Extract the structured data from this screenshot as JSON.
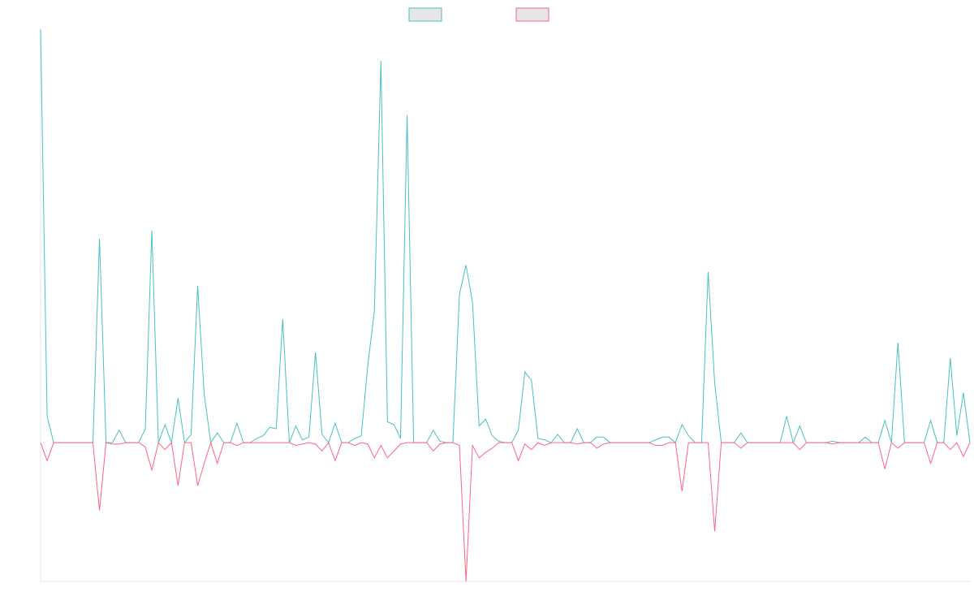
{
  "chart_data": {
    "type": "line",
    "categories": [
      null,
      null,
      null,
      null,
      null,
      null,
      null,
      null,
      null,
      null,
      null,
      null,
      null,
      null,
      null,
      null,
      null,
      null,
      null,
      null,
      null,
      null,
      null,
      null,
      null,
      null,
      null,
      null,
      null,
      null,
      null,
      null,
      null,
      null,
      null,
      null,
      null,
      null,
      null,
      null,
      null,
      null,
      null,
      null,
      null,
      null,
      null,
      null,
      null,
      null,
      null,
      null,
      null,
      null,
      null,
      null,
      null,
      null,
      null,
      null,
      null,
      null,
      null,
      null,
      null,
      null,
      null,
      null,
      null,
      null,
      null,
      null,
      null,
      null,
      null,
      null,
      null,
      null,
      null,
      null,
      null,
      null,
      null,
      null,
      null,
      null,
      null,
      null,
      null,
      null,
      null,
      null,
      null,
      null,
      null,
      null,
      null,
      null,
      null,
      null,
      null,
      null,
      null,
      null,
      null,
      null,
      null,
      null,
      null,
      null,
      null,
      null,
      null,
      null,
      null,
      null,
      null,
      null,
      null,
      null,
      null,
      null,
      null,
      null,
      null,
      null,
      null,
      null,
      null,
      null,
      null,
      null,
      null,
      null,
      null,
      null,
      null,
      null,
      null,
      null,
      null,
      null,
      null
    ],
    "series": [
      {
        "color": "#4bc0c0",
        "values": [
          298,
          19,
          0,
          0,
          0,
          0,
          0,
          0,
          0,
          147,
          0,
          0,
          9,
          0,
          0,
          0,
          10,
          153,
          0,
          13,
          0,
          32,
          0,
          6,
          113,
          35,
          0,
          7,
          0,
          0,
          14,
          0,
          0,
          3,
          5,
          11,
          10,
          89,
          0,
          12,
          2,
          4,
          65,
          6,
          0,
          14,
          0,
          0,
          3,
          5,
          56,
          95,
          275,
          15,
          13,
          3,
          236,
          0,
          0,
          0,
          9,
          1,
          0,
          0,
          107,
          128,
          101,
          12,
          17,
          5,
          1,
          0,
          0,
          9,
          51,
          45,
          3,
          2,
          0,
          6,
          0,
          0,
          10,
          0,
          0,
          4,
          4,
          0,
          0,
          0,
          0,
          0,
          0,
          0,
          2,
          4,
          4,
          0,
          13,
          5,
          0,
          0,
          123,
          43,
          0,
          0,
          0,
          7,
          0,
          0,
          0,
          0,
          0,
          0,
          19,
          0,
          12,
          0,
          0,
          0,
          0,
          1,
          0,
          0,
          0,
          0,
          4,
          0,
          0,
          16,
          0,
          72,
          0,
          0,
          0,
          0,
          16,
          0,
          0,
          61,
          5,
          36,
          0
        ]
      },
      {
        "color": "#ff6384",
        "values": [
          0,
          -13,
          0,
          0,
          0,
          0,
          0,
          0,
          0,
          -49,
          0,
          -1,
          -1,
          0,
          0,
          0,
          -3,
          -20,
          0,
          -5,
          0,
          -31,
          0,
          0,
          -31,
          -15,
          0,
          -15,
          0,
          0,
          -2,
          0,
          0,
          0,
          0,
          0,
          0,
          0,
          0,
          -2,
          -1,
          0,
          -1,
          -6,
          0,
          -13,
          0,
          0,
          -2,
          0,
          -1,
          -11,
          -2,
          -11,
          -6,
          -1,
          0,
          0,
          0,
          0,
          -6,
          -1,
          0,
          0,
          -2,
          -100,
          -2,
          -11,
          -7,
          -4,
          0,
          0,
          0,
          -13,
          -1,
          -5,
          0,
          -2,
          0,
          0,
          0,
          0,
          -1,
          0,
          0,
          -4,
          -1,
          0,
          0,
          0,
          0,
          0,
          0,
          0,
          -2,
          -2,
          0,
          0,
          -35,
          0,
          0,
          0,
          0,
          -64,
          0,
          0,
          0,
          -4,
          0,
          0,
          0,
          0,
          0,
          0,
          0,
          0,
          -5,
          0,
          0,
          0,
          0,
          -1,
          0,
          0,
          0,
          0,
          0,
          0,
          0,
          -19,
          0,
          -4,
          0,
          0,
          0,
          0,
          -15,
          0,
          0,
          -5,
          0,
          -10,
          0
        ]
      }
    ],
    "ylim": [
      -100,
      298
    ],
    "legend": "top"
  }
}
